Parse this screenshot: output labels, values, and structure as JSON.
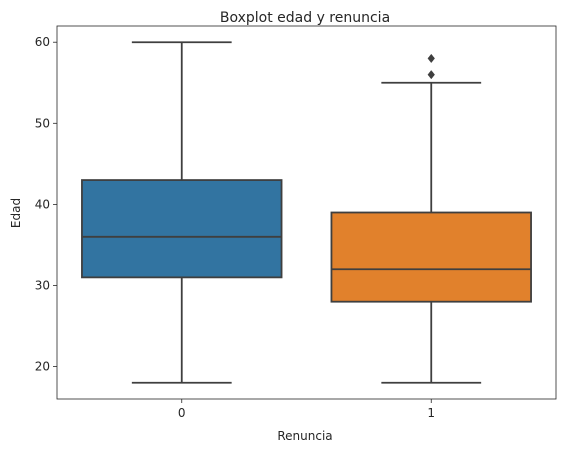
{
  "chart_data": {
    "type": "box",
    "title": "Boxplot edad y renuncia",
    "xlabel": "Renuncia",
    "ylabel": "Edad",
    "categories": [
      "0",
      "1"
    ],
    "ylim": [
      16,
      62
    ],
    "yticks": [
      "20",
      "30",
      "40",
      "50",
      "60"
    ],
    "grid": false,
    "edge_color": "#3f3f3f",
    "boxes": [
      {
        "category": "0",
        "min": 18,
        "q1": 31,
        "median": 36,
        "q3": 43,
        "max": 60,
        "outliers": [],
        "color": "#3274a1"
      },
      {
        "category": "1",
        "min": 18,
        "q1": 28,
        "median": 32,
        "q3": 39,
        "max": 55,
        "outliers": [
          56,
          58
        ],
        "color": "#e1812c"
      }
    ]
  }
}
